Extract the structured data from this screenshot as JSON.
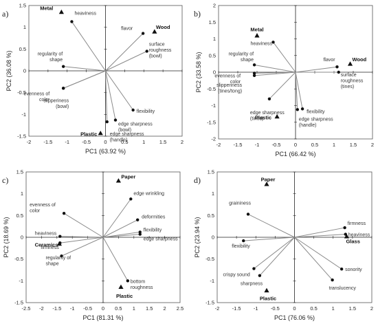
{
  "chart_data": [
    {
      "type": "scatter",
      "panel": "a)",
      "xlabel": "PC1 (63.92 %)",
      "ylabel": "PC2 (36.08 %)",
      "xlim": [
        -2,
        2
      ],
      "ylim": [
        -1.5,
        1.5
      ],
      "xticks": [
        -2,
        -1.5,
        -1,
        -0.5,
        0,
        0.5,
        1,
        1.5,
        2
      ],
      "xtick_labels": [
        "-2",
        "-1.5",
        "-1",
        "-0.5",
        "0",
        "0.5",
        "1",
        "1.5",
        "2"
      ],
      "yticks": [
        -1.5,
        -1,
        -0.5,
        0,
        0.5,
        1,
        1.5
      ],
      "ytick_labels": [
        "-1.5",
        "-1",
        "-0.5",
        "0",
        "0.5",
        "1",
        "1.5"
      ],
      "grid": false,
      "vectors": [
        {
          "label": "heaviness",
          "x": -0.88,
          "y": 1.13
        },
        {
          "label": "regularity of shape",
          "x": -1.1,
          "y": 0.1
        },
        {
          "label": "evenness of color",
          "x": -1.1,
          "y": -0.4
        },
        {
          "label": "slipperiness (bowl)",
          "x": -1.1,
          "y": -0.4
        },
        {
          "label": "flavor",
          "x": 0.98,
          "y": 0.86
        },
        {
          "label": "surface roughness (bowl)",
          "x": 1.08,
          "y": 0.45
        },
        {
          "label": "flexibility",
          "x": 0.72,
          "y": -0.9
        },
        {
          "label": "edge sharpness (bowl)",
          "x": 0.26,
          "y": -1.13
        },
        {
          "label": "edge sharpness (handle)",
          "x": 0.04,
          "y": -1.17
        }
      ],
      "materials": [
        {
          "label": "Metal",
          "x": -1.15,
          "y": 1.35
        },
        {
          "label": "Wood",
          "x": 1.28,
          "y": 0.9
        },
        {
          "label": "Plastic",
          "x": -0.13,
          "y": -1.43
        }
      ]
    },
    {
      "type": "scatter",
      "panel": "b)",
      "xlabel": "PC1 (66.42 %)",
      "ylabel": "PC2 (33.58 %)",
      "xlim": [
        -2,
        2
      ],
      "ylim": [
        -2,
        2
      ],
      "xticks": [
        -2,
        -1.5,
        -1,
        -0.5,
        0,
        0.5,
        1,
        1.5,
        2
      ],
      "xtick_labels": [
        "-2",
        "-1.5",
        "-1",
        "-0.5",
        "0",
        "0.5",
        "1",
        "1.5",
        "2"
      ],
      "yticks": [
        -2,
        -1.5,
        -1,
        -0.5,
        0,
        0.5,
        1,
        1.5,
        2
      ],
      "ytick_labels": [
        "-2",
        "-1.5",
        "-1",
        "-0.5",
        "0",
        "0.5",
        "1",
        "1.5",
        "2"
      ],
      "grid": false,
      "vectors": [
        {
          "label": "heaviness",
          "x": -0.58,
          "y": 0.9
        },
        {
          "label": "regularity of shape",
          "x": -1.07,
          "y": 0.22
        },
        {
          "label": "evenness of color",
          "x": -1.07,
          "y": -0.03
        },
        {
          "label": "slipperiness (tines/tong)",
          "x": -1.07,
          "y": -0.1
        },
        {
          "label": "edge sharpness (tines)",
          "x": -0.68,
          "y": -0.8
        },
        {
          "label": "flavor",
          "x": 1.08,
          "y": 0.16
        },
        {
          "label": "surface roughness (tines)",
          "x": 1.12,
          "y": 0.0
        },
        {
          "label": "flexibility",
          "x": 0.18,
          "y": -1.1
        },
        {
          "label": "edge sharpness (handle)",
          "x": 0.05,
          "y": -1.12
        }
      ],
      "materials": [
        {
          "label": "Metal",
          "x": -1.0,
          "y": 1.1
        },
        {
          "label": "Wood",
          "x": 1.42,
          "y": 0.25
        },
        {
          "label": "Plastic",
          "x": -0.48,
          "y": -1.33
        }
      ]
    },
    {
      "type": "scatter",
      "panel": "c)",
      "xlabel": "PC1 (81.31 %)",
      "ylabel": "PC2 (18.69 %)",
      "xlim": [
        -2.5,
        2.5
      ],
      "ylim": [
        -1.5,
        1.5
      ],
      "xticks": [
        -2.5,
        -2,
        -1.5,
        -1,
        -0.5,
        0,
        0.5,
        1,
        1.5,
        2,
        2.5
      ],
      "xtick_labels": [
        "-2.5",
        "-2",
        "-1.5",
        "-1",
        "-0.5",
        "0",
        "0.5",
        "1",
        "1.5",
        "2",
        "2.5"
      ],
      "yticks": [
        -1.5,
        -1,
        -0.5,
        0,
        0.5,
        1,
        1.5
      ],
      "ytick_labels": [
        "-1.5",
        "-1",
        "-0.5",
        "0",
        "0.5",
        "1",
        "1.5"
      ],
      "grid": false,
      "vectors": [
        {
          "label": "evenness of color",
          "x": -1.27,
          "y": 0.55
        },
        {
          "label": "heaviness",
          "x": -1.4,
          "y": 0.02
        },
        {
          "label": "firmness",
          "x": -1.4,
          "y": -0.13
        },
        {
          "label": "regularity of shape",
          "x": -1.35,
          "y": -0.43
        },
        {
          "label": "edge wrinkling",
          "x": 0.9,
          "y": 0.88
        },
        {
          "label": "deformities",
          "x": 1.12,
          "y": 0.4
        },
        {
          "label": "flexibility",
          "x": 1.2,
          "y": 0.12
        },
        {
          "label": "edge sharpness",
          "x": 1.2,
          "y": 0.07
        },
        {
          "label": "bottom roughness",
          "x": 0.8,
          "y": -1.0
        }
      ],
      "materials": [
        {
          "label": "Paper",
          "x": 0.5,
          "y": 1.3
        },
        {
          "label": "Ceramics",
          "x": -1.42,
          "y": -0.15
        },
        {
          "label": "Plastic",
          "x": 0.58,
          "y": -1.14
        }
      ]
    },
    {
      "type": "scatter",
      "panel": "d)",
      "xlabel": "PC1 (76.06 %)",
      "ylabel": "PC2 (23.94 %)",
      "xlim": [
        -2,
        2
      ],
      "ylim": [
        -1.5,
        1.5
      ],
      "xticks": [
        -2,
        -1.5,
        -1,
        -0.5,
        0,
        0.5,
        1,
        1.5,
        2
      ],
      "xtick_labels": [
        "-2",
        "-1.5",
        "-1",
        "-0.5",
        "0",
        "0.5",
        "1",
        "1.5",
        "2"
      ],
      "yticks": [
        -1.5,
        -1,
        -0.5,
        0,
        0.5,
        1,
        1.5
      ],
      "ytick_labels": [
        "-1.5",
        "-1",
        "-0.5",
        "0",
        "0.5",
        "1",
        "1.5"
      ],
      "grid": false,
      "vectors": [
        {
          "label": "graininess",
          "x": -1.2,
          "y": 0.53
        },
        {
          "label": "flexibility",
          "x": -1.32,
          "y": -0.08
        },
        {
          "label": "crispy sound",
          "x": -1.05,
          "y": -0.72
        },
        {
          "label": "sharpness",
          "x": -0.9,
          "y": -0.88
        },
        {
          "label": "firmness",
          "x": 1.3,
          "y": 0.22
        },
        {
          "label": "heaviness",
          "x": 1.32,
          "y": 0.07
        },
        {
          "label": "sonority",
          "x": 1.22,
          "y": -0.73
        },
        {
          "label": "translucency",
          "x": 0.98,
          "y": -0.98
        }
      ],
      "materials": [
        {
          "label": "Paper",
          "x": -0.72,
          "y": 1.22
        },
        {
          "label": "Glass",
          "x": 1.35,
          "y": 0.02
        },
        {
          "label": "Plastic",
          "x": -0.72,
          "y": -1.22
        }
      ]
    }
  ]
}
